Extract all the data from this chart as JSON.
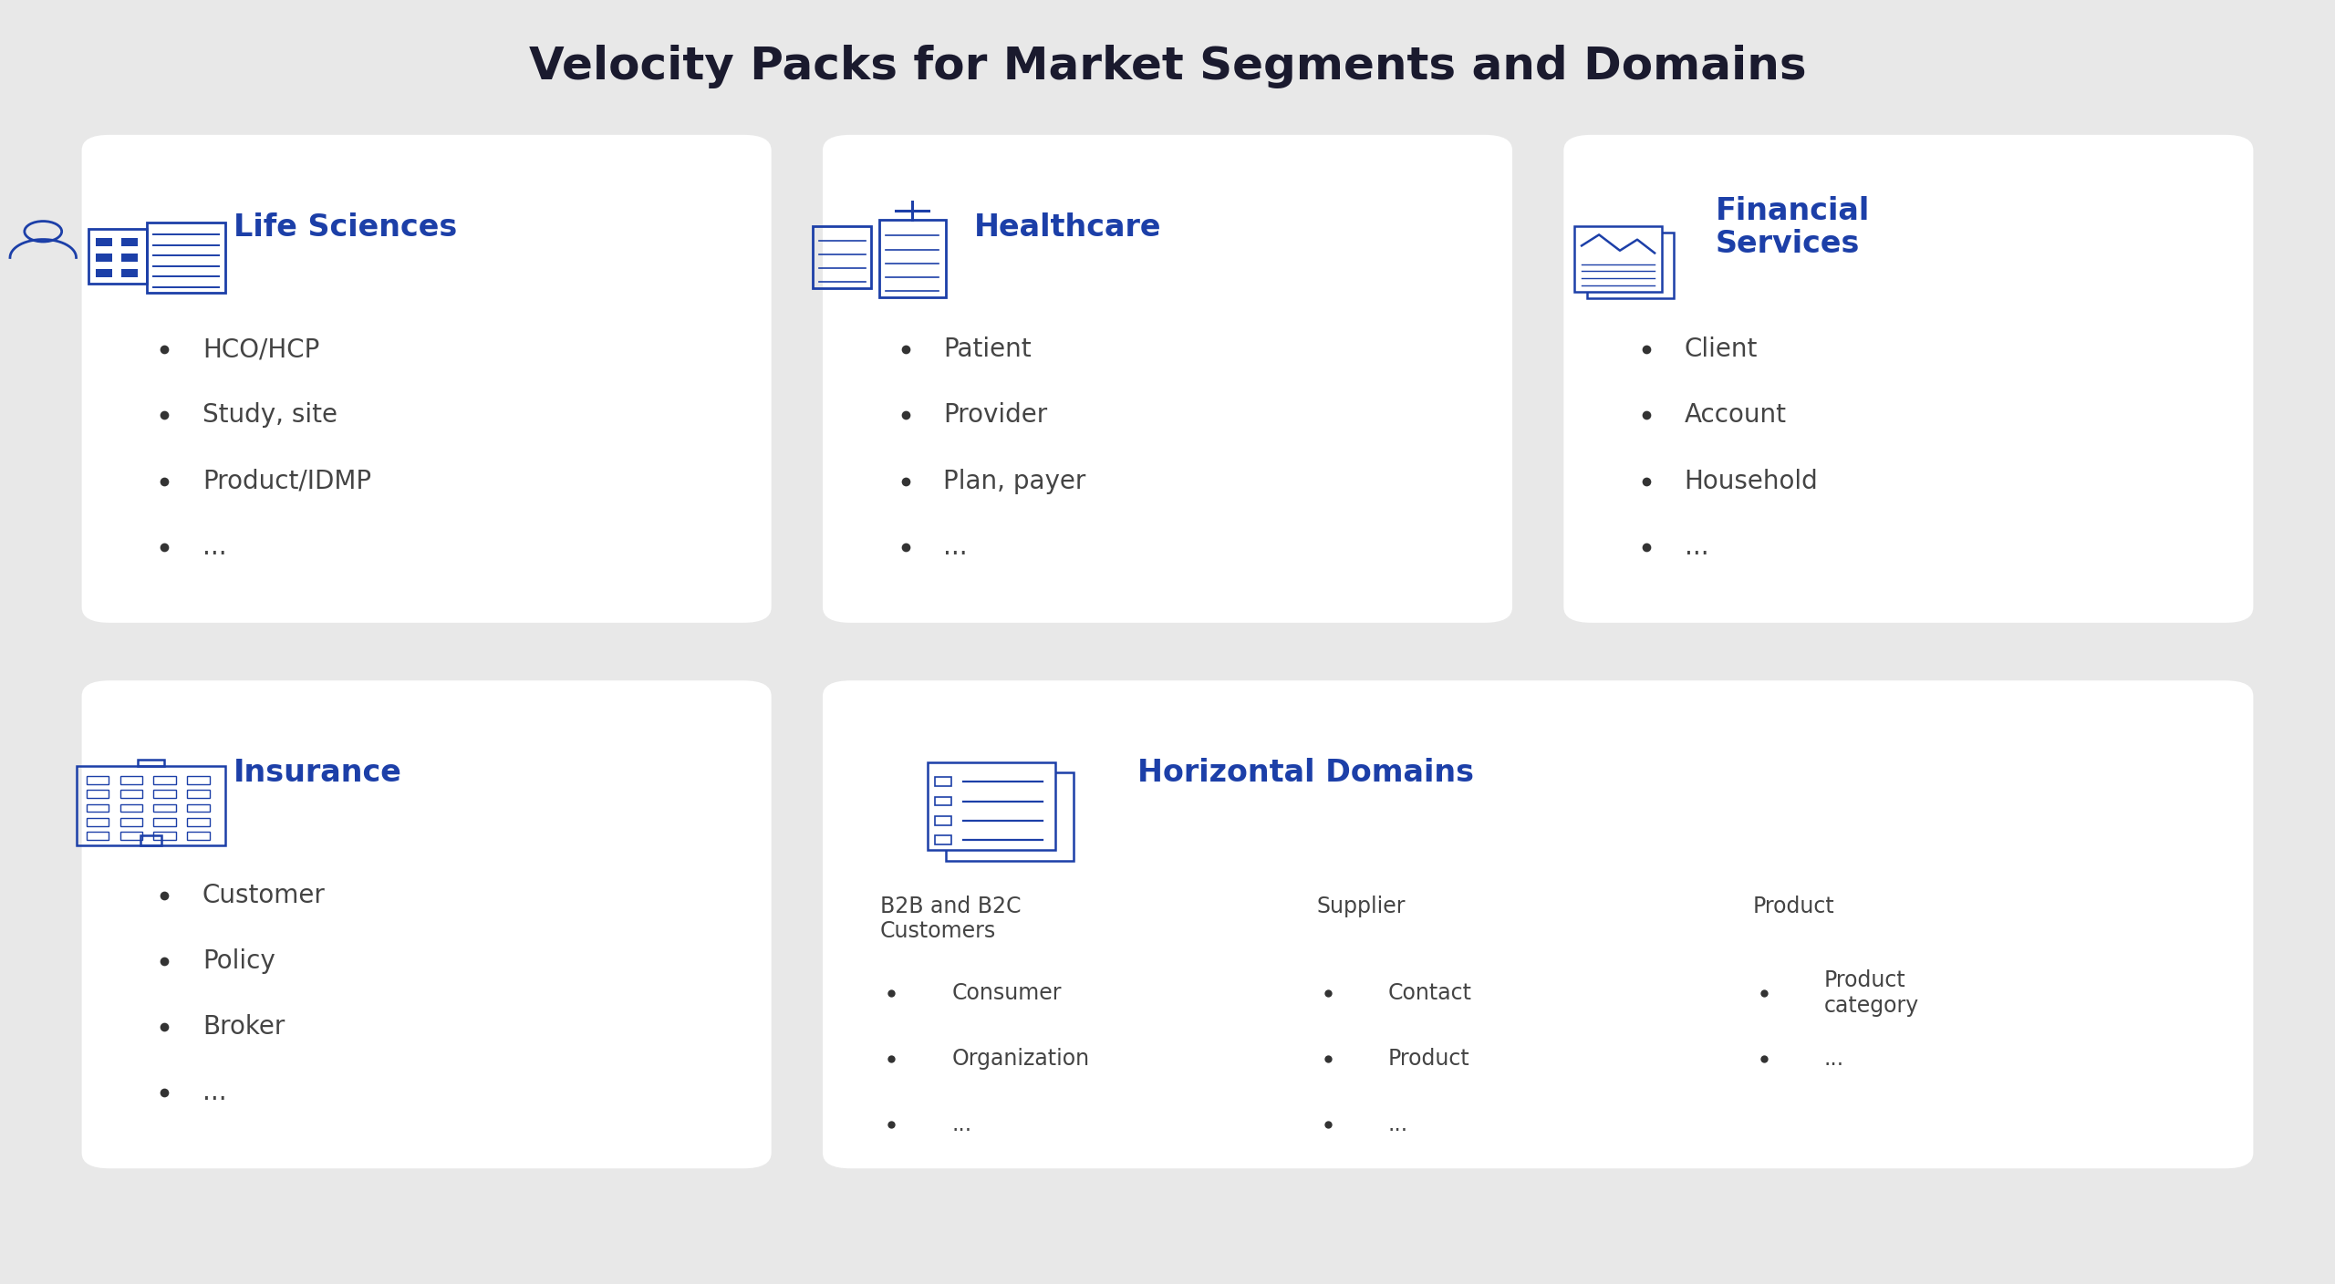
{
  "title": "Velocity Packs for Market Segments and Domains",
  "title_color": "#1a1a2e",
  "title_fontsize": 36,
  "background_color": "#e8e8e8",
  "card_background": "#ffffff",
  "blue_color": "#1c3fa8",
  "text_color": "#555555",
  "bullet_color": "#444444",
  "cards": [
    {
      "id": "life_sciences",
      "row": 0,
      "col": 0,
      "title": "Life Sciences",
      "icon_type": "life_sciences",
      "bullets": [
        "HCO/HCP",
        "Study, site",
        "Product/IDMP",
        "..."
      ],
      "sub_cols": null
    },
    {
      "id": "healthcare",
      "row": 0,
      "col": 1,
      "title": "Healthcare",
      "icon_type": "healthcare",
      "bullets": [
        "Patient",
        "Provider",
        "Plan, payer",
        "..."
      ],
      "sub_cols": null
    },
    {
      "id": "financial",
      "row": 0,
      "col": 2,
      "title": "Financial\nServices",
      "icon_type": "financial",
      "bullets": [
        "Client",
        "Account",
        "Household",
        "..."
      ],
      "sub_cols": null
    },
    {
      "id": "insurance",
      "row": 1,
      "col": 0,
      "title": "Insurance",
      "icon_type": "insurance",
      "bullets": [
        "Customer",
        "Policy",
        "Broker",
        "..."
      ],
      "sub_cols": null
    },
    {
      "id": "horizontal",
      "row": 1,
      "col": 1,
      "title": "Horizontal Domains",
      "icon_type": "horizontal",
      "bullets": null,
      "sub_cols": [
        {
          "header": "B2B and B2C\nCustomers",
          "bullets": [
            "Consumer",
            "Organization",
            "..."
          ]
        },
        {
          "header": "Supplier",
          "bullets": [
            "Contact",
            "Product",
            "..."
          ]
        },
        {
          "header": "Product",
          "bullets": [
            "Product\ncategory",
            "..."
          ]
        }
      ]
    }
  ]
}
